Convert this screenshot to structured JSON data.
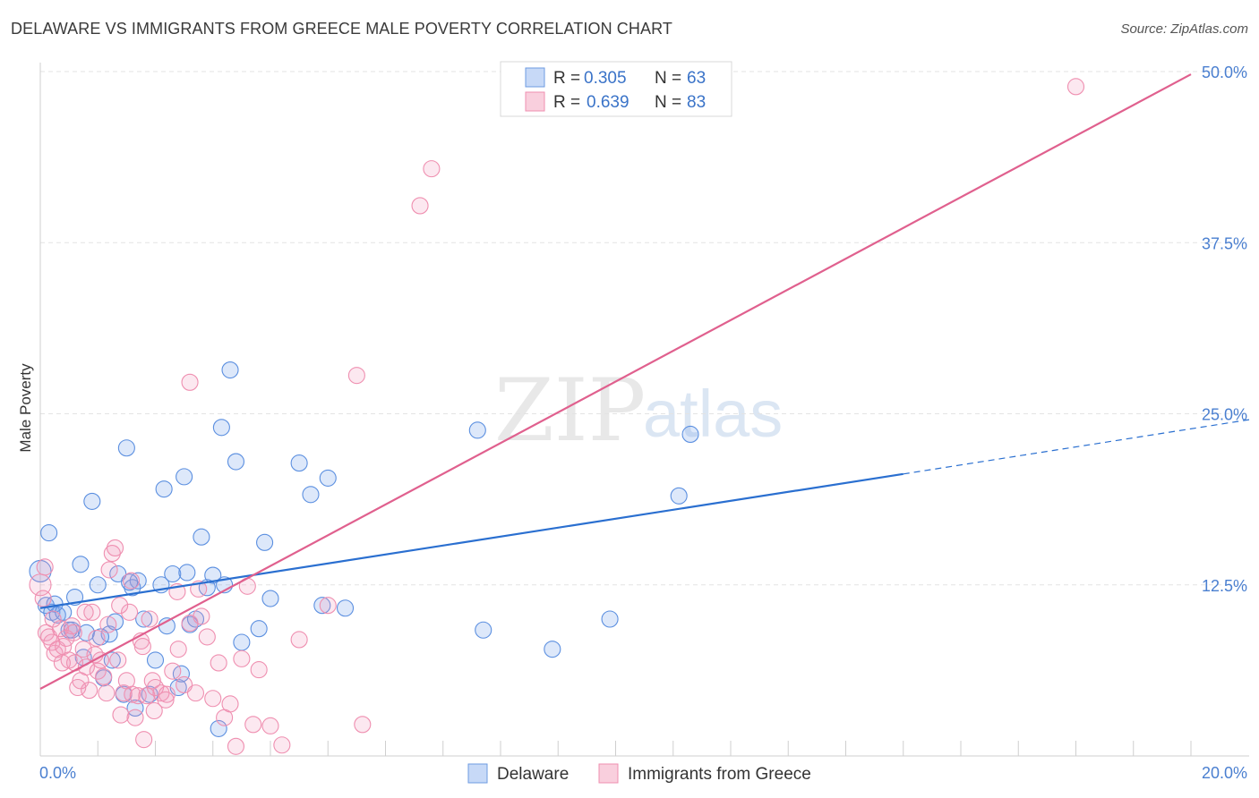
{
  "title": "DELAWARE VS IMMIGRANTS FROM GREECE MALE POVERTY CORRELATION CHART",
  "source": "Source: ZipAtlas.com",
  "watermark": {
    "part1": "ZIP",
    "part2": "atlas"
  },
  "colors": {
    "blue": "#5b8fe0",
    "blue_line": "#2a6fd0",
    "pink": "#ef8fb0",
    "pink_line": "#e0608e",
    "tick": "#4a7fd0"
  },
  "chart_data": {
    "type": "scatter",
    "title": "DELAWARE VS IMMIGRANTS FROM GREECE MALE POVERTY CORRELATION CHART",
    "xlabel": "",
    "ylabel": "Male Poverty",
    "xlim": [
      0,
      20
    ],
    "ylim": [
      0,
      50
    ],
    "x_tick_labels": [
      "0.0%",
      "20.0%"
    ],
    "y_ticks": [
      12.5,
      25.0,
      37.5,
      50.0
    ],
    "y_tick_labels": [
      "12.5%",
      "25.0%",
      "37.5%",
      "50.0%"
    ],
    "legend": {
      "placement": "top-center",
      "entries": [
        {
          "r_label": "R =",
          "r_value": "0.305",
          "n_label": "N =",
          "n_value": "63"
        },
        {
          "r_label": "R =",
          "r_value": "0.639",
          "n_label": "N =",
          "n_value": "83"
        }
      ]
    },
    "bottom_legend": [
      "Delaware",
      "Immigrants from Greece"
    ],
    "series": [
      {
        "name": "Delaware",
        "color": "#5b8fe0",
        "trend": {
          "x0": 0,
          "y0": 10.8,
          "x1": 15.0,
          "y1": 20.6,
          "dash_to_x": 20,
          "dash_to_y": 23.9
        },
        "points": [
          [
            0.0,
            13.5
          ],
          [
            0.1,
            11.0
          ],
          [
            0.2,
            10.5
          ],
          [
            0.3,
            10.3
          ],
          [
            0.5,
            9.2
          ],
          [
            0.6,
            11.6
          ],
          [
            0.7,
            14.0
          ],
          [
            0.8,
            9.0
          ],
          [
            0.9,
            18.6
          ],
          [
            1.0,
            12.5
          ],
          [
            1.1,
            5.7
          ],
          [
            1.2,
            8.9
          ],
          [
            1.3,
            9.8
          ],
          [
            1.5,
            22.5
          ],
          [
            1.6,
            12.3
          ],
          [
            1.7,
            12.8
          ],
          [
            1.8,
            10.0
          ],
          [
            1.9,
            4.5
          ],
          [
            2.0,
            7.0
          ],
          [
            2.1,
            12.5
          ],
          [
            2.2,
            9.5
          ],
          [
            2.3,
            13.3
          ],
          [
            2.4,
            5.0
          ],
          [
            2.5,
            20.4
          ],
          [
            2.6,
            9.6
          ],
          [
            2.7,
            10.0
          ],
          [
            2.8,
            16.0
          ],
          [
            2.9,
            12.3
          ],
          [
            3.0,
            13.2
          ],
          [
            3.1,
            2.0
          ],
          [
            3.2,
            12.5
          ],
          [
            3.3,
            28.2
          ],
          [
            3.4,
            21.5
          ],
          [
            3.5,
            8.3
          ],
          [
            3.8,
            9.3
          ],
          [
            3.9,
            15.6
          ],
          [
            4.0,
            11.5
          ],
          [
            4.5,
            21.4
          ],
          [
            4.7,
            19.1
          ],
          [
            4.9,
            11.0
          ],
          [
            5.0,
            20.3
          ],
          [
            5.3,
            10.8
          ],
          [
            0.15,
            16.3
          ],
          [
            0.25,
            11.1
          ],
          [
            0.4,
            10.5
          ],
          [
            0.55,
            9.2
          ],
          [
            0.75,
            7.2
          ],
          [
            1.05,
            8.7
          ],
          [
            1.25,
            7.0
          ],
          [
            1.45,
            4.5
          ],
          [
            1.65,
            3.5
          ],
          [
            2.15,
            19.5
          ],
          [
            2.45,
            6.0
          ],
          [
            2.55,
            13.4
          ],
          [
            3.15,
            24.0
          ],
          [
            7.6,
            23.8
          ],
          [
            7.7,
            9.2
          ],
          [
            8.9,
            7.8
          ],
          [
            9.9,
            10.0
          ],
          [
            11.1,
            19.0
          ],
          [
            11.3,
            23.5
          ],
          [
            1.35,
            13.3
          ],
          [
            1.55,
            12.7
          ]
        ]
      },
      {
        "name": "Immigrants from Greece",
        "color": "#ef8fb0",
        "trend": {
          "x0": 0,
          "y0": 4.9,
          "x1": 20,
          "y1": 49.8
        },
        "points": [
          [
            0.0,
            12.5
          ],
          [
            0.05,
            11.5
          ],
          [
            0.1,
            9.0
          ],
          [
            0.15,
            8.7
          ],
          [
            0.2,
            8.3
          ],
          [
            0.25,
            7.5
          ],
          [
            0.3,
            7.8
          ],
          [
            0.35,
            9.3
          ],
          [
            0.4,
            8.0
          ],
          [
            0.45,
            8.6
          ],
          [
            0.5,
            7.0
          ],
          [
            0.55,
            9.5
          ],
          [
            0.6,
            6.8
          ],
          [
            0.65,
            5.0
          ],
          [
            0.7,
            5.5
          ],
          [
            0.75,
            7.8
          ],
          [
            0.8,
            6.5
          ],
          [
            0.85,
            4.8
          ],
          [
            0.9,
            10.5
          ],
          [
            0.95,
            7.4
          ],
          [
            1.0,
            6.2
          ],
          [
            1.05,
            7.0
          ],
          [
            1.1,
            5.8
          ],
          [
            1.15,
            4.6
          ],
          [
            1.2,
            13.6
          ],
          [
            1.25,
            14.8
          ],
          [
            1.3,
            15.2
          ],
          [
            1.35,
            7.0
          ],
          [
            1.4,
            3.0
          ],
          [
            1.45,
            4.6
          ],
          [
            1.5,
            5.5
          ],
          [
            1.55,
            10.5
          ],
          [
            1.6,
            4.5
          ],
          [
            1.65,
            2.8
          ],
          [
            1.7,
            4.4
          ],
          [
            1.75,
            8.4
          ],
          [
            1.8,
            1.2
          ],
          [
            1.85,
            4.4
          ],
          [
            1.9,
            10.0
          ],
          [
            1.95,
            5.5
          ],
          [
            2.0,
            5.0
          ],
          [
            2.1,
            4.6
          ],
          [
            2.2,
            4.5
          ],
          [
            2.3,
            6.2
          ],
          [
            2.4,
            7.8
          ],
          [
            2.5,
            5.2
          ],
          [
            2.6,
            9.7
          ],
          [
            2.7,
            4.6
          ],
          [
            2.8,
            10.2
          ],
          [
            2.9,
            8.7
          ],
          [
            3.0,
            4.2
          ],
          [
            3.1,
            6.8
          ],
          [
            3.2,
            2.8
          ],
          [
            3.3,
            3.8
          ],
          [
            3.4,
            0.7
          ],
          [
            3.5,
            7.1
          ],
          [
            3.6,
            12.4
          ],
          [
            3.7,
            2.3
          ],
          [
            3.8,
            6.3
          ],
          [
            4.0,
            2.2
          ],
          [
            4.2,
            0.8
          ],
          [
            4.5,
            8.5
          ],
          [
            5.0,
            11.0
          ],
          [
            5.5,
            27.8
          ],
          [
            5.6,
            2.3
          ],
          [
            6.6,
            40.2
          ],
          [
            6.8,
            42.9
          ],
          [
            18.0,
            48.9
          ],
          [
            2.6,
            27.3
          ],
          [
            2.75,
            12.2
          ],
          [
            0.08,
            13.8
          ],
          [
            0.22,
            10.0
          ],
          [
            0.38,
            6.8
          ],
          [
            0.58,
            9.0
          ],
          [
            0.78,
            10.5
          ],
          [
            0.98,
            8.6
          ],
          [
            1.18,
            9.6
          ],
          [
            1.38,
            11.0
          ],
          [
            1.58,
            12.8
          ],
          [
            1.78,
            8.0
          ],
          [
            1.98,
            3.3
          ],
          [
            2.18,
            4.1
          ],
          [
            2.38,
            12.0
          ]
        ]
      }
    ]
  }
}
